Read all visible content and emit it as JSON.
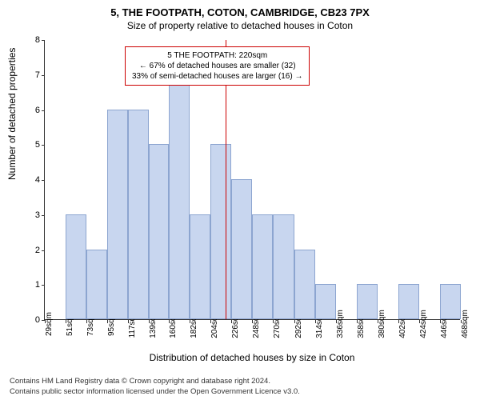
{
  "chart": {
    "type": "histogram",
    "title": "5, THE FOOTPATH, COTON, CAMBRIDGE, CB23 7PX",
    "subtitle": "Size of property relative to detached houses in Coton",
    "x_axis_label": "Distribution of detached houses by size in Coton",
    "y_axis_label": "Number of detached properties",
    "ylim": [
      0,
      8
    ],
    "ytick_step": 1,
    "x_ticks": [
      29,
      51,
      73,
      95,
      117,
      139,
      160,
      182,
      204,
      226,
      248,
      270,
      292,
      314,
      336,
      358,
      380,
      402,
      424,
      446,
      468
    ],
    "x_tick_suffix": "sqm",
    "bar_values": [
      0,
      3,
      2,
      6,
      6,
      5,
      7,
      3,
      5,
      4,
      3,
      3,
      2,
      1,
      0,
      1,
      0,
      1,
      0,
      1
    ],
    "bar_fill": "#c8d6ef",
    "bar_border": "#8ca5d0",
    "marker_value": 220,
    "marker_color": "#cc0000",
    "background_color": "#ffffff",
    "axis_color": "#333333",
    "title_fontsize": 13,
    "subtitle_fontsize": 12,
    "label_fontsize": 12,
    "tick_fontsize": 11
  },
  "info_box": {
    "line1": "5 THE FOOTPATH: 220sqm",
    "line2": "← 67% of detached houses are smaller (32)",
    "line3": "33% of semi-detached houses are larger (16) →",
    "border_color": "#cc0000"
  },
  "footer": {
    "line1": "Contains HM Land Registry data © Crown copyright and database right 2024.",
    "line2": "Contains public sector information licensed under the Open Government Licence v3.0."
  }
}
